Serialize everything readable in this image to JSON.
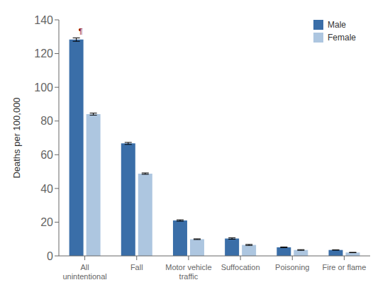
{
  "chart_data": {
    "type": "bar",
    "categories": [
      "All\nunintentional",
      "Fall",
      "Motor vehicle\ntraffic",
      "Suffocation",
      "Poisoning",
      "Fire or flame"
    ],
    "series": [
      {
        "name": "Male",
        "color": "#3a6ea8",
        "values": [
          128.3,
          66.7,
          21.0,
          10.3,
          5.1,
          3.5
        ],
        "errors": [
          1.0,
          0.6,
          0.4,
          0.4,
          0.2,
          0.1
        ]
      },
      {
        "name": "Female",
        "color": "#adc6e0",
        "values": [
          84.1,
          48.8,
          9.9,
          6.5,
          3.5,
          2.0
        ],
        "errors": [
          0.6,
          0.4,
          0.2,
          0.3,
          0.2,
          0.1
        ]
      }
    ],
    "ylabel": "Deaths per 100,000",
    "ylim": [
      0,
      140
    ],
    "yticks": [
      0,
      20,
      40,
      60,
      80,
      100,
      120,
      140
    ],
    "legend": "upper right",
    "grid": false,
    "annotations": [
      {
        "text": "¶",
        "category": "All\nunintentional",
        "series": "Male",
        "color": "#8B0000"
      }
    ]
  }
}
